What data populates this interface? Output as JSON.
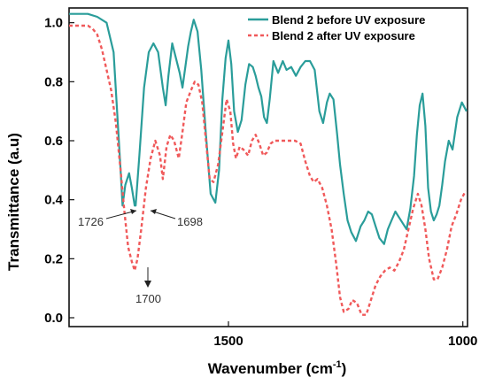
{
  "chart_data": {
    "type": "line",
    "title": "",
    "xlabel": "Wavenumber (cm",
    "xlabel_sup": "-1",
    "xlabel_suffix": ")",
    "ylabel": "Transmittance (a.u)",
    "xlim": [
      1840,
      990
    ],
    "ylim": [
      -0.03,
      1.05
    ],
    "x_reversed": true,
    "grid": false,
    "legend_position": "top-right",
    "x_ticks": [
      {
        "value": 1500,
        "label": "1500"
      },
      {
        "value": 1000,
        "label": "1000"
      }
    ],
    "y_ticks": [
      {
        "value": 1.0,
        "label": "1.0"
      },
      {
        "value": 0.8,
        "label": "0.8"
      },
      {
        "value": 0.6,
        "label": "0.6"
      },
      {
        "value": 0.4,
        "label": "0.4"
      },
      {
        "value": 0.2,
        "label": "0.2"
      },
      {
        "value": 0.0,
        "label": "0.0"
      }
    ],
    "series": [
      {
        "name": "Blend 2 before UV exposure",
        "color": "#2a9d9a",
        "style": "solid",
        "x": [
          1840,
          1800,
          1780,
          1760,
          1745,
          1730,
          1726,
          1720,
          1712,
          1706,
          1700,
          1698,
          1690,
          1680,
          1670,
          1660,
          1650,
          1640,
          1634,
          1628,
          1620,
          1612,
          1604,
          1598,
          1592,
          1586,
          1580,
          1574,
          1566,
          1558,
          1548,
          1538,
          1528,
          1520,
          1513,
          1506,
          1500,
          1494,
          1488,
          1480,
          1472,
          1464,
          1456,
          1448,
          1442,
          1436,
          1430,
          1424,
          1418,
          1412,
          1404,
          1394,
          1384,
          1376,
          1366,
          1356,
          1346,
          1336,
          1326,
          1316,
          1306,
          1298,
          1290,
          1284,
          1276,
          1268,
          1262,
          1254,
          1246,
          1238,
          1228,
          1218,
          1210,
          1202,
          1194,
          1186,
          1178,
          1168,
          1160,
          1152,
          1144,
          1136,
          1128,
          1120,
          1112,
          1104,
          1098,
          1092,
          1086,
          1080,
          1074,
          1068,
          1062,
          1056,
          1050,
          1044,
          1038,
          1030,
          1022,
          1012,
          1002,
          992
        ],
        "y": [
          1.03,
          1.03,
          1.02,
          1.0,
          0.9,
          0.5,
          0.38,
          0.45,
          0.49,
          0.44,
          0.38,
          0.38,
          0.55,
          0.78,
          0.9,
          0.93,
          0.9,
          0.78,
          0.72,
          0.82,
          0.93,
          0.88,
          0.83,
          0.78,
          0.85,
          0.92,
          0.97,
          1.01,
          0.97,
          0.84,
          0.62,
          0.42,
          0.39,
          0.5,
          0.74,
          0.88,
          0.94,
          0.86,
          0.7,
          0.63,
          0.67,
          0.79,
          0.86,
          0.85,
          0.82,
          0.78,
          0.75,
          0.68,
          0.66,
          0.74,
          0.87,
          0.83,
          0.87,
          0.84,
          0.85,
          0.82,
          0.85,
          0.87,
          0.87,
          0.84,
          0.7,
          0.66,
          0.73,
          0.76,
          0.74,
          0.62,
          0.52,
          0.42,
          0.33,
          0.29,
          0.26,
          0.31,
          0.33,
          0.36,
          0.35,
          0.31,
          0.27,
          0.25,
          0.3,
          0.33,
          0.36,
          0.34,
          0.32,
          0.3,
          0.37,
          0.48,
          0.62,
          0.72,
          0.76,
          0.65,
          0.44,
          0.36,
          0.33,
          0.35,
          0.38,
          0.45,
          0.53,
          0.6,
          0.57,
          0.68,
          0.73,
          0.7
        ]
      },
      {
        "name": "Blend 2 after UV exposure",
        "color": "#f0595a",
        "style": "dashed",
        "x": [
          1840,
          1800,
          1790,
          1780,
          1770,
          1760,
          1750,
          1740,
          1730,
          1722,
          1714,
          1706,
          1700,
          1694,
          1686,
          1676,
          1666,
          1656,
          1646,
          1640,
          1632,
          1624,
          1616,
          1606,
          1598,
          1590,
          1580,
          1572,
          1564,
          1556,
          1548,
          1540,
          1532,
          1522,
          1512,
          1504,
          1496,
          1490,
          1484,
          1476,
          1468,
          1458,
          1450,
          1442,
          1434,
          1426,
          1418,
          1410,
          1402,
          1392,
          1380,
          1370,
          1358,
          1346,
          1336,
          1326,
          1318,
          1310,
          1300,
          1290,
          1280,
          1270,
          1262,
          1254,
          1244,
          1236,
          1226,
          1216,
          1206,
          1196,
          1186,
          1176,
          1166,
          1156,
          1146,
          1136,
          1126,
          1116,
          1106,
          1096,
          1088,
          1080,
          1072,
          1062,
          1054,
          1044,
          1034,
          1024,
          1014,
          1004,
          994
        ],
        "y": [
          0.99,
          0.99,
          0.98,
          0.96,
          0.91,
          0.84,
          0.77,
          0.66,
          0.5,
          0.36,
          0.24,
          0.19,
          0.16,
          0.2,
          0.3,
          0.44,
          0.54,
          0.6,
          0.55,
          0.47,
          0.58,
          0.62,
          0.6,
          0.54,
          0.63,
          0.73,
          0.77,
          0.8,
          0.79,
          0.73,
          0.6,
          0.47,
          0.46,
          0.52,
          0.64,
          0.74,
          0.7,
          0.59,
          0.54,
          0.58,
          0.57,
          0.55,
          0.6,
          0.62,
          0.59,
          0.55,
          0.56,
          0.59,
          0.6,
          0.6,
          0.6,
          0.6,
          0.6,
          0.59,
          0.53,
          0.48,
          0.46,
          0.47,
          0.44,
          0.38,
          0.3,
          0.18,
          0.07,
          0.02,
          0.03,
          0.06,
          0.05,
          0.01,
          0.01,
          0.06,
          0.11,
          0.14,
          0.16,
          0.17,
          0.16,
          0.19,
          0.23,
          0.3,
          0.37,
          0.42,
          0.38,
          0.3,
          0.2,
          0.13,
          0.13,
          0.17,
          0.23,
          0.31,
          0.35,
          0.4,
          0.43
        ]
      }
    ],
    "annotations": [
      {
        "label": "1726",
        "x": 1726,
        "y": 0.385
      },
      {
        "label": "1698",
        "x": 1698,
        "y": 0.385
      },
      {
        "label": "1700",
        "x": 1700,
        "y": 0.165
      }
    ]
  }
}
